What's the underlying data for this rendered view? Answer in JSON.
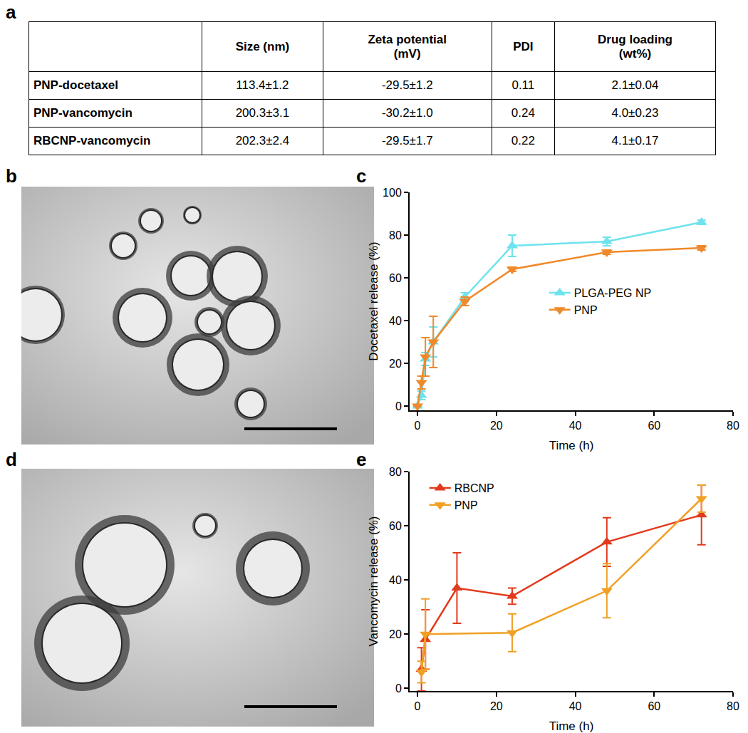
{
  "panel_labels": [
    "a",
    "b",
    "c",
    "d",
    "e"
  ],
  "table": {
    "header": [
      "",
      "Size (nm)",
      "Zeta potential\n(mV)",
      "PDI",
      "Drug loading\n(wt%)"
    ],
    "rows": [
      [
        "PNP-docetaxel",
        "113.4±1.2",
        "-29.5±1.2",
        "0.11",
        "2.1±0.04"
      ],
      [
        "PNP-vancomycin",
        "200.3±3.1",
        "-30.2±1.0",
        "0.24",
        "4.0±0.23"
      ],
      [
        "RBCNP-vancomycin",
        "202.3±2.4",
        "-29.5±1.7",
        "0.22",
        "4.1±0.17"
      ]
    ]
  },
  "chart_data": [
    {
      "type": "line",
      "x_label": "Time (h)",
      "y_label": "Docetaxel release (%)",
      "xlim": [
        -2,
        80
      ],
      "xticks": [
        0,
        20,
        40,
        60,
        80
      ],
      "ylim": [
        -2,
        100
      ],
      "yticks": [
        0,
        20,
        40,
        60,
        80,
        100
      ],
      "grid": false,
      "legend": "center",
      "series": [
        {
          "name": "PLGA-PEG NP",
          "color": "#6ee3ee",
          "marker": "triangle-up",
          "x": [
            0,
            1,
            2,
            4,
            12,
            24,
            48,
            72
          ],
          "values": [
            0,
            5,
            22,
            30,
            51,
            75,
            77,
            86
          ],
          "error": [
            0,
            2,
            3,
            7,
            2,
            5,
            2,
            1
          ]
        },
        {
          "name": "PNP",
          "color": "#f0892a",
          "marker": "triangle-down",
          "x": [
            0,
            1,
            2,
            4,
            12,
            24,
            48,
            72
          ],
          "values": [
            0,
            11,
            23,
            30,
            49,
            64,
            72,
            74
          ],
          "error": [
            0,
            3,
            9,
            12,
            2,
            1,
            1,
            1
          ]
        }
      ]
    },
    {
      "type": "line",
      "x_label": "Time (h)",
      "y_label": "Vancomycin release (%)",
      "xlim": [
        -2,
        80
      ],
      "xticks": [
        0,
        20,
        40,
        60,
        80
      ],
      "ylim": [
        -1,
        80
      ],
      "yticks": [
        0,
        20,
        40,
        60,
        80
      ],
      "grid": false,
      "legend": "upper left",
      "series": [
        {
          "name": "RBCNP",
          "color": "#e23a1c",
          "marker": "triangle-up",
          "x": [
            1,
            2,
            10,
            24,
            48,
            72
          ],
          "values": [
            7,
            18,
            37,
            34,
            54,
            64
          ],
          "error": [
            8,
            11,
            13,
            3,
            9,
            11
          ]
        },
        {
          "name": "PNP",
          "color": "#f0a024",
          "marker": "triangle-down",
          "x": [
            1,
            2,
            24,
            48,
            72
          ],
          "values": [
            6,
            20,
            20.5,
            36,
            70
          ],
          "error": [
            4,
            13,
            7,
            10,
            5
          ]
        }
      ]
    }
  ]
}
